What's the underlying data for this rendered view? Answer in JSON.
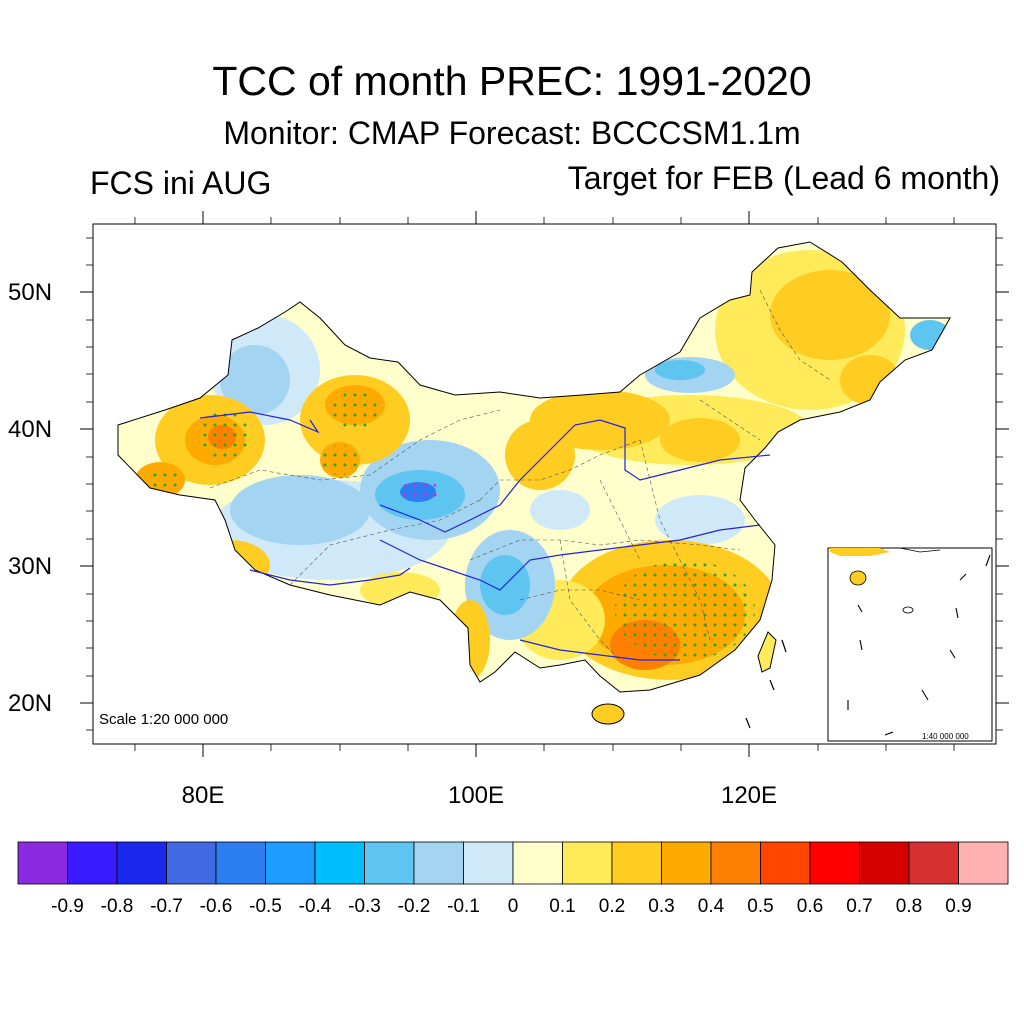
{
  "title": "TCC of month PREC: 1991-2020",
  "subtitle": "Monitor: CMAP   Forecast: BCCCSM1.1m",
  "left_string": "FCS ini AUG",
  "right_string": "Target for FEB (Lead 6 month)",
  "lat_ticks": [
    "50N",
    "40N",
    "30N",
    "20N"
  ],
  "lon_ticks": [
    "80E",
    "100E",
    "120E"
  ],
  "scale_text": "Scale 1:20 000 000",
  "inset_scale_text": "1:40 000 000",
  "colorbar": {
    "levels": [
      "-0.9",
      "-0.8",
      "-0.7",
      "-0.6",
      "-0.5",
      "-0.4",
      "-0.3",
      "-0.2",
      "-0.1",
      "0",
      "0.1",
      "0.2",
      "0.3",
      "0.4",
      "0.5",
      "0.6",
      "0.7",
      "0.8",
      "0.9"
    ],
    "colors": [
      "#8a2be2",
      "#3a1aff",
      "#1a28ee",
      "#4169e1",
      "#2c7ef0",
      "#1e9bff",
      "#00bfff",
      "#5ec4f0",
      "#a3d4f2",
      "#cfe9f8",
      "#ffffcc",
      "#ffea5a",
      "#ffcc22",
      "#ffaa00",
      "#ff8000",
      "#ff4500",
      "#ff0000",
      "#d50000",
      "#d63030",
      "#ffb0b0"
    ]
  }
}
